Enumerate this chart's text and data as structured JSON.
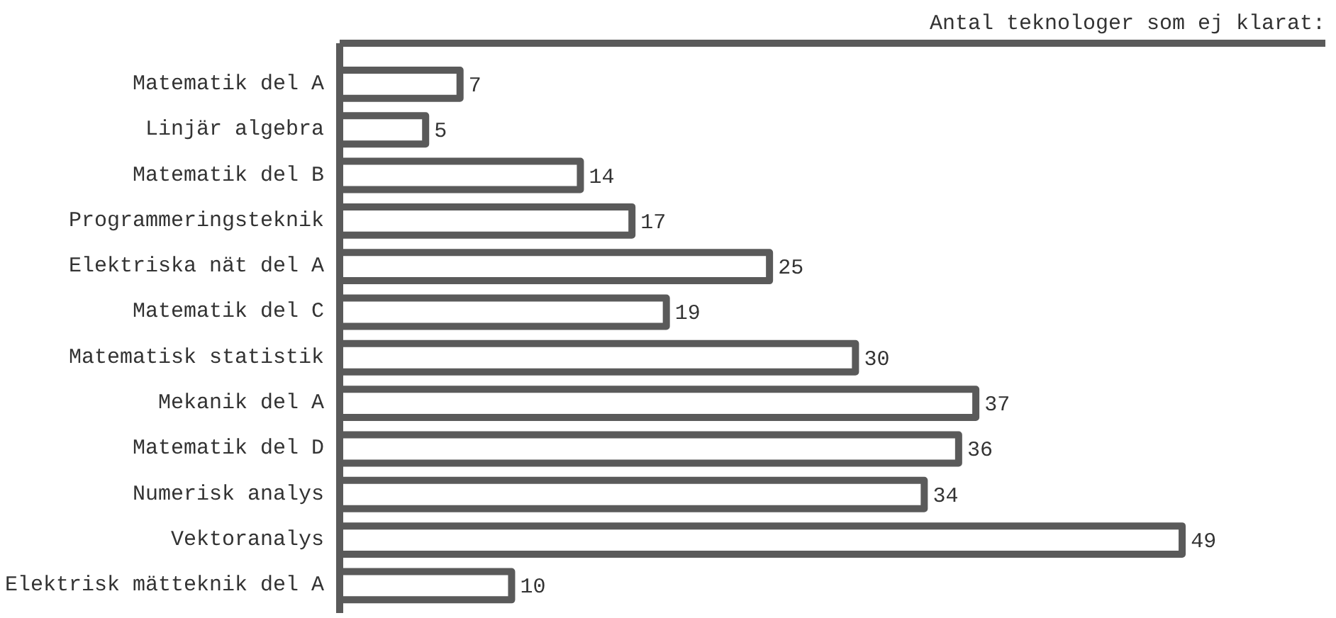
{
  "chart_data": {
    "type": "bar",
    "orientation": "horizontal",
    "title": "Antal teknologer som ej klarat:",
    "categories": [
      "Matematik del A",
      "Linjär algebra",
      "Matematik del B",
      "Programmeringsteknik",
      "Elektriska nät del A",
      "Matematik del C",
      "Matematisk statistik",
      "Mekanik del A",
      "Matematik del D",
      "Numerisk analys",
      "Vektoranalys",
      "Elektrisk mätteknik del A"
    ],
    "values": [
      7,
      5,
      14,
      17,
      25,
      19,
      30,
      37,
      36,
      34,
      49,
      10
    ],
    "color": "#5a5a5a",
    "data_labels": true,
    "grid": false
  }
}
